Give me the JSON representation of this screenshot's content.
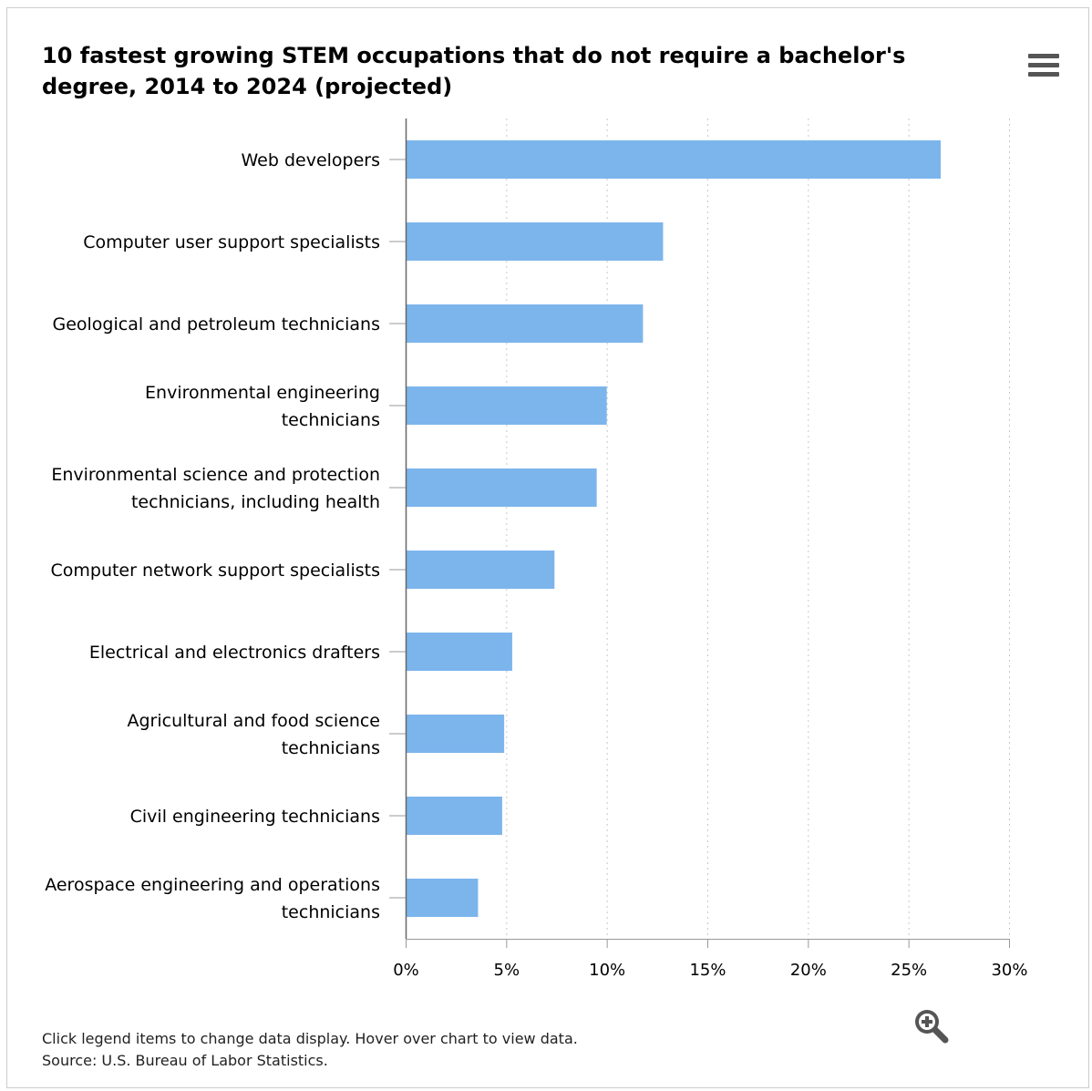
{
  "chart": {
    "title": "10 fastest growing STEM occupations that do not require a bachelor's degree, 2014 to 2024 (projected)",
    "menu_icon": "hamburger-menu-icon",
    "zoom_icon": "zoom-in-icon",
    "footer": {
      "instruction": "Click legend items to change data display. Hover over chart to view data.",
      "source": "Source: U.S. Bureau of Labor Statistics."
    },
    "bar_color": "#7cb5ec"
  },
  "chart_data": {
    "type": "bar",
    "orientation": "horizontal",
    "title": "10 fastest growing STEM occupations that do not require a bachelor's degree, 2014 to 2024 (projected)",
    "categories": [
      [
        "Web developers"
      ],
      [
        "Computer user support specialists"
      ],
      [
        "Geological and petroleum technicians"
      ],
      [
        "Environmental engineering",
        "technicians"
      ],
      [
        "Environmental science and protection",
        "technicians, including health"
      ],
      [
        "Computer network support specialists"
      ],
      [
        "Electrical and electronics drafters"
      ],
      [
        "Agricultural and food science",
        "technicians"
      ],
      [
        "Civil engineering technicians"
      ],
      [
        "Aerospace engineering and operations",
        "technicians"
      ]
    ],
    "values": [
      26.6,
      12.8,
      11.8,
      10.0,
      9.5,
      7.4,
      5.3,
      4.9,
      4.8,
      3.6
    ],
    "xlim": [
      0,
      30
    ],
    "ticks": [
      0,
      5,
      10,
      15,
      20,
      25,
      30
    ],
    "tick_labels": [
      "0%",
      "5%",
      "10%",
      "15%",
      "20%",
      "25%",
      "30%"
    ],
    "grid": true,
    "legend": "none"
  }
}
